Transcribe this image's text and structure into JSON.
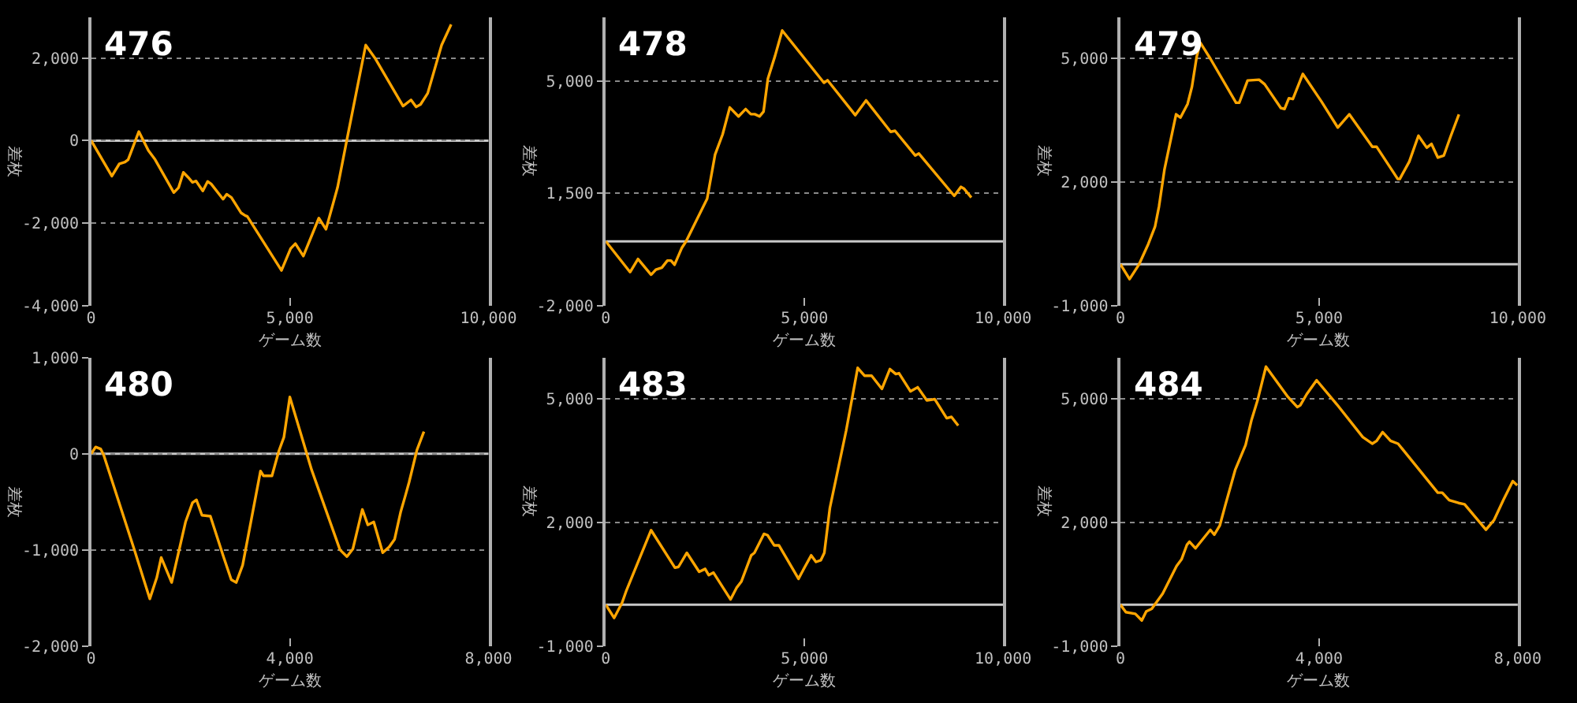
{
  "chart_data": [
    {
      "type": "line",
      "title": "476",
      "xlabel": "ゲーム数",
      "ylabel": "差枚",
      "color": "#ffa500",
      "grid": "y",
      "xlim": [
        0,
        10000
      ],
      "xticks": [
        0,
        {
          "value": 5000,
          "label": "5,000"
        },
        {
          "value": 10000,
          "label": "10,000"
        }
      ],
      "ylim": [
        -4000,
        3000
      ],
      "yticks": [
        {
          "value": -4000,
          "label": "-4,000"
        },
        {
          "value": -2000,
          "label": "-2,000"
        },
        0,
        {
          "value": 2000,
          "label": "2,000"
        }
      ],
      "ref_lines": [
        {
          "axis": "y",
          "value": 0,
          "color": "#c8c8c8"
        }
      ],
      "x": [
        0,
        520,
        710,
        850,
        930,
        1200,
        1440,
        1610,
        2080,
        2200,
        2320,
        2440,
        2550,
        2640,
        2810,
        2930,
        3020,
        3320,
        3410,
        3530,
        3770,
        3880,
        3930,
        4790,
        5020,
        5140,
        5340,
        5730,
        5910,
        6200,
        6440,
        6910,
        7140,
        7850,
        8050,
        8180,
        8290,
        8470,
        8820,
        9060
      ],
      "values": [
        0,
        -860,
        -560,
        -520,
        -460,
        220,
        -240,
        -460,
        -1260,
        -1140,
        -770,
        -890,
        -1010,
        -980,
        -1220,
        -990,
        -1050,
        -1420,
        -1300,
        -1380,
        -1750,
        -1820,
        -1840,
        -3150,
        -2620,
        -2500,
        -2800,
        -1880,
        -2150,
        -1140,
        40,
        2320,
        2010,
        840,
        990,
        820,
        880,
        1150,
        2320,
        2820
      ]
    },
    {
      "type": "line",
      "title": "478",
      "xlabel": "ゲーム数",
      "ylabel": "差枚",
      "color": "#ffa500",
      "grid": "y",
      "xlim": [
        0,
        10000
      ],
      "xticks": [
        0,
        {
          "value": 5000,
          "label": "5,000"
        },
        {
          "value": 10000,
          "label": "10,000"
        }
      ],
      "ylim": [
        -2000,
        7000
      ],
      "yticks": [
        {
          "value": -2000,
          "label": "-2,000"
        },
        {
          "value": 1500,
          "label": "1,500"
        },
        {
          "value": 5000,
          "label": "5,000"
        }
      ],
      "ref_lines": [
        {
          "axis": "y",
          "value": 0,
          "color": "#c8c8c8"
        }
      ],
      "x": [
        0,
        610,
        810,
        1140,
        1260,
        1410,
        1550,
        1640,
        1730,
        1910,
        2020,
        2550,
        2750,
        2940,
        3120,
        3340,
        3520,
        3650,
        3750,
        3870,
        3970,
        4080,
        4260,
        4440,
        5490,
        5580,
        6280,
        6550,
        7170,
        7280,
        7790,
        7880,
        8770,
        8940,
        9020,
        9200
      ],
      "values": [
        0,
        -960,
        -550,
        -1040,
        -880,
        -820,
        -600,
        -600,
        -730,
        -210,
        0,
        1330,
        2710,
        3340,
        4180,
        3900,
        4130,
        3970,
        3970,
        3900,
        4050,
        5080,
        5790,
        6580,
        4950,
        5030,
        3940,
        4400,
        3420,
        3450,
        2680,
        2740,
        1420,
        1700,
        1640,
        1370
      ]
    },
    {
      "type": "line",
      "title": "479",
      "xlabel": "ゲーム数",
      "ylabel": "差枚",
      "color": "#ffa500",
      "grid": "y",
      "xlim": [
        0,
        10000
      ],
      "xticks": [
        0,
        {
          "value": 5000,
          "label": "5,000"
        },
        {
          "value": 10000,
          "label": "10,000"
        }
      ],
      "ylim": [
        -1000,
        6000
      ],
      "yticks": [
        {
          "value": -1000,
          "label": "-1,000"
        },
        {
          "value": 2000,
          "label": "2,000"
        },
        {
          "value": 5000,
          "label": "5,000"
        }
      ],
      "ref_lines": [
        {
          "axis": "y",
          "value": 0,
          "color": "#c8c8c8"
        }
      ],
      "x": [
        0,
        230,
        470,
        700,
        870,
        970,
        1110,
        1400,
        1510,
        1690,
        1800,
        1920,
        2010,
        2270,
        2910,
        2990,
        3200,
        3490,
        3630,
        4040,
        4130,
        4240,
        4340,
        4590,
        5060,
        5470,
        5760,
        6340,
        6450,
        6980,
        7030,
        7270,
        7500,
        7710,
        7830,
        7990,
        8140,
        8310,
        8520
      ],
      "values": [
        0,
        -360,
        0,
        490,
        910,
        1400,
        2310,
        3640,
        3560,
        3890,
        4310,
        5040,
        5380,
        4980,
        3920,
        3920,
        4460,
        4480,
        4370,
        3790,
        3770,
        4030,
        4010,
        4620,
        3950,
        3320,
        3640,
        2850,
        2850,
        2070,
        2070,
        2490,
        3120,
        2830,
        2920,
        2590,
        2640,
        3100,
        3640
      ]
    },
    {
      "type": "line",
      "title": "480",
      "xlabel": "ゲーム数",
      "ylabel": "差枚",
      "color": "#ffa500",
      "grid": "y",
      "xlim": [
        0,
        8000
      ],
      "xticks": [
        0,
        {
          "value": 4000,
          "label": "4,000"
        },
        {
          "value": 8000,
          "label": "8,000"
        }
      ],
      "ylim": [
        -2000,
        1000
      ],
      "yticks": [
        {
          "value": -2000,
          "label": "-2,000"
        },
        {
          "value": -1000,
          "label": "-1,000"
        },
        0,
        {
          "value": 1000,
          "label": "1,000"
        }
      ],
      "ref_lines": [
        {
          "axis": "y",
          "value": 0,
          "color": "#c8c8c8"
        }
      ],
      "x": [
        0,
        90,
        190,
        250,
        870,
        1180,
        1320,
        1410,
        1620,
        1900,
        2040,
        2120,
        2230,
        2400,
        2670,
        2820,
        2920,
        3050,
        3410,
        3470,
        3640,
        3780,
        3880,
        4000,
        4440,
        5010,
        5150,
        5270,
        5460,
        5570,
        5690,
        5870,
        6000,
        6110,
        6230,
        6330,
        6400,
        6560,
        6700
      ],
      "values": [
        0,
        70,
        50,
        -10,
        -1000,
        -1510,
        -1290,
        -1080,
        -1340,
        -710,
        -510,
        -480,
        -640,
        -650,
        -1080,
        -1310,
        -1340,
        -1160,
        -180,
        -230,
        -230,
        30,
        170,
        590,
        -170,
        -1000,
        -1070,
        -990,
        -580,
        -740,
        -710,
        -1030,
        -970,
        -890,
        -610,
        -430,
        -300,
        40,
        230
      ]
    },
    {
      "type": "line",
      "title": "483",
      "xlabel": "ゲーム数",
      "ylabel": "差枚",
      "color": "#ffa500",
      "grid": "y",
      "xlim": [
        0,
        10000
      ],
      "xticks": [
        0,
        {
          "value": 5000,
          "label": "5,000"
        },
        {
          "value": 10000,
          "label": "10,000"
        }
      ],
      "ylim": [
        -1000,
        6000
      ],
      "yticks": [
        {
          "value": -1000,
          "label": "-1,000"
        },
        {
          "value": 2000,
          "label": "2,000"
        },
        {
          "value": 5000,
          "label": "5,000"
        }
      ],
      "ref_lines": [
        {
          "axis": "y",
          "value": 0,
          "color": "#c8c8c8"
        }
      ],
      "x": [
        0,
        210,
        410,
        520,
        1140,
        1740,
        1830,
        2040,
        2350,
        2500,
        2590,
        2710,
        3140,
        3290,
        3410,
        3660,
        3740,
        3980,
        4070,
        4240,
        4360,
        4850,
        5000,
        5170,
        5290,
        5410,
        5500,
        5640,
        6050,
        6340,
        6510,
        6690,
        6950,
        7150,
        7300,
        7380,
        7670,
        7850,
        8080,
        8280,
        8580,
        8700,
        8870
      ],
      "values": [
        0,
        -320,
        50,
        350,
        1810,
        900,
        920,
        1260,
        800,
        870,
        720,
        780,
        130,
        410,
        560,
        1200,
        1260,
        1720,
        1690,
        1440,
        1440,
        630,
        900,
        1200,
        1040,
        1080,
        1260,
        2350,
        4230,
        5750,
        5560,
        5560,
        5240,
        5720,
        5600,
        5620,
        5180,
        5280,
        4960,
        4990,
        4530,
        4560,
        4350
      ]
    },
    {
      "type": "line",
      "title": "484",
      "xlabel": "ゲーム数",
      "ylabel": "差枚",
      "color": "#ffa500",
      "grid": "y",
      "xlim": [
        0,
        8000
      ],
      "xticks": [
        0,
        {
          "value": 4000,
          "label": "4,000"
        },
        {
          "value": 8000,
          "label": "8,000"
        }
      ],
      "ylim": [
        -1000,
        6000
      ],
      "yticks": [
        {
          "value": -1000,
          "label": "-1,000"
        },
        {
          "value": 2000,
          "label": "2,000"
        },
        {
          "value": 5000,
          "label": "5,000"
        }
      ],
      "ref_lines": [
        {
          "axis": "y",
          "value": 0,
          "color": "#c8c8c8"
        }
      ],
      "x": [
        0,
        110,
        300,
        430,
        520,
        630,
        850,
        1130,
        1230,
        1340,
        1390,
        1510,
        1810,
        1890,
        2000,
        2110,
        2310,
        2520,
        2640,
        2760,
        2930,
        3370,
        3560,
        3620,
        3750,
        3950,
        4360,
        4880,
        5070,
        5160,
        5280,
        5440,
        5590,
        6390,
        6480,
        6620,
        6810,
        6930,
        7360,
        7520,
        7710,
        7900,
        7990
      ],
      "values": [
        0,
        -180,
        -220,
        -380,
        -160,
        -100,
        270,
        940,
        1100,
        1460,
        1530,
        1370,
        1820,
        1700,
        1920,
        2410,
        3270,
        3880,
        4490,
        4960,
        5780,
        5050,
        4800,
        4840,
        5110,
        5450,
        4860,
        4070,
        3910,
        3980,
        4190,
        3980,
        3910,
        2720,
        2720,
        2540,
        2470,
        2440,
        1820,
        2050,
        2540,
        3000,
        2900
      ]
    }
  ]
}
